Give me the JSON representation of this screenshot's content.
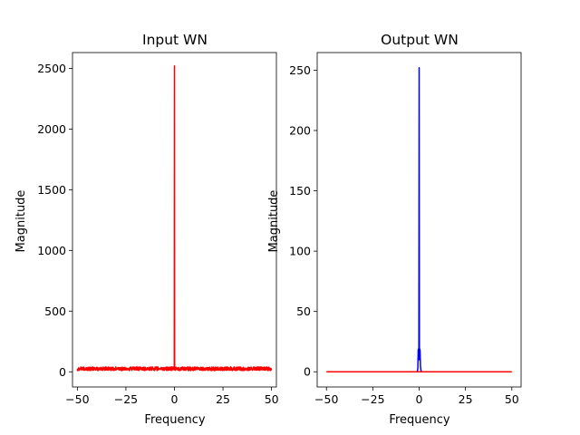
{
  "chart_data": [
    {
      "type": "line",
      "title": "Input WN",
      "xlabel": "Frequency",
      "ylabel": "Magnitude",
      "xlim": [
        -52.5,
        52.5
      ],
      "ylim": [
        -125,
        2630
      ],
      "xticks": [
        -50,
        -25,
        0,
        25,
        50
      ],
      "xtick_labels": [
        "−50",
        "−25",
        "0",
        "25",
        "50"
      ],
      "yticks": [
        0,
        500,
        1000,
        1500,
        2000,
        2500
      ],
      "ytick_labels": [
        "0",
        "500",
        "1000",
        "1500",
        "2000",
        "2500"
      ],
      "grid": false,
      "series": [
        {
          "color": "#ff0000",
          "description": "noise magnitude spectrum with DC peak",
          "x_range": [
            -50,
            50
          ],
          "peak": {
            "x": 0,
            "y": 2520
          },
          "noise_level_range": [
            10,
            40
          ]
        }
      ]
    },
    {
      "type": "line",
      "title": "Output WN",
      "xlabel": "Frequency",
      "ylabel": "Magnitude",
      "xlim": [
        -55,
        55
      ],
      "ylim": [
        -12.6,
        264.6
      ],
      "xticks": [
        -50,
        -25,
        0,
        25,
        50
      ],
      "xtick_labels": [
        "−50",
        "−25",
        "0",
        "25",
        "50"
      ],
      "yticks": [
        0,
        50,
        100,
        150,
        200,
        250
      ],
      "ytick_labels": [
        "0",
        "50",
        "100",
        "150",
        "200",
        "250"
      ],
      "grid": false,
      "series": [
        {
          "color": "#0000ff",
          "description": "filtered magnitude spectrum concentrated near 0",
          "points": [
            [
              -1.0,
              0
            ],
            [
              -0.7,
              3
            ],
            [
              -0.5,
              18
            ],
            [
              -0.3,
              19
            ],
            [
              -0.15,
              10
            ],
            [
              0,
              252
            ],
            [
              0.15,
              10
            ],
            [
              0.3,
              19
            ],
            [
              0.5,
              18
            ],
            [
              0.7,
              5
            ],
            [
              0.9,
              2
            ],
            [
              1.2,
              0
            ]
          ]
        },
        {
          "color": "#ff0000",
          "description": "flat reference line",
          "points": [
            [
              -50,
              0
            ],
            [
              50,
              0
            ]
          ]
        }
      ]
    }
  ]
}
